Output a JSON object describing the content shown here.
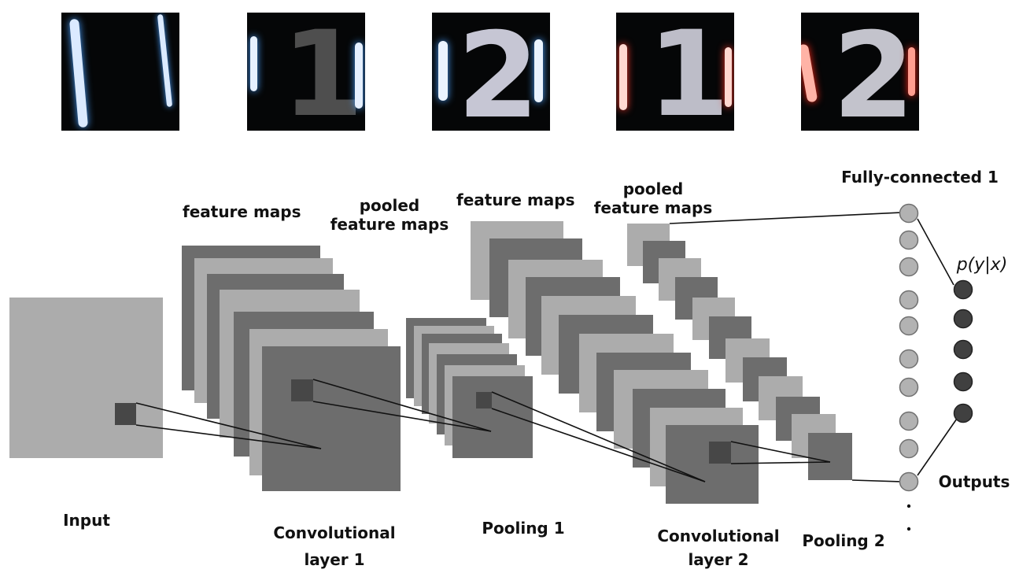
{
  "samples": [
    {
      "name": "digit-pair-11-blue",
      "glyph": "",
      "glow": "#cfe4ff"
    },
    {
      "name": "digit-1-blue",
      "glyph": "1",
      "glow": "#cfe4ff"
    },
    {
      "name": "digit-2-blue",
      "glyph": "2",
      "glow": "#cfe4ff"
    },
    {
      "name": "digit-1-red",
      "glyph": "1",
      "glow": "#ff7a6a"
    },
    {
      "name": "digit-2-red",
      "glyph": "2",
      "glow": "#ff6a55"
    }
  ],
  "labels": {
    "feature_maps_1": "feature maps",
    "pooled_feature_maps_1": "pooled\nfeature maps",
    "feature_maps_2": "feature maps",
    "pooled_feature_maps_2": "pooled\nfeature maps",
    "fully_connected": "Fully-connected 1",
    "output_prob": "p(y|x)",
    "outputs": "Outputs",
    "input": "Input",
    "conv1": "Convolutional\nlayer 1",
    "pool1": "Pooling 1",
    "conv2": "Convolutional\nlayer 2",
    "pool2": "Pooling 2"
  },
  "colors": {
    "light_map": "#acacac",
    "dark_map": "#6d6d6d",
    "kernel": "#474747",
    "fc_node": "#b2b2b2",
    "output_node": "#404040"
  }
}
